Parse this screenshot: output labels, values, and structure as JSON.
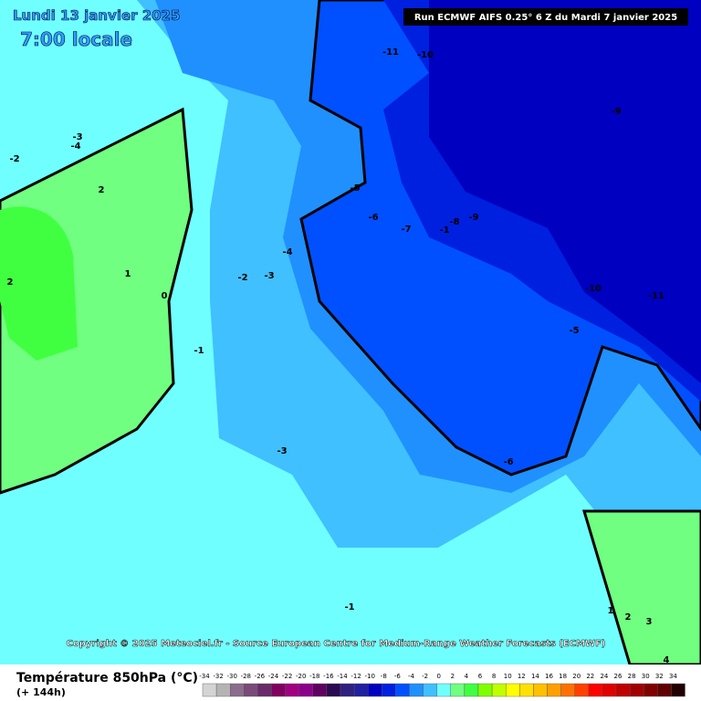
{
  "header": {
    "date": "Lundi 13 janvier 2025",
    "time": "7:00 locale",
    "run": "Run ECMWF AIFS 0.25° 6 Z du Mardi 7 janvier 2025"
  },
  "copyright": "Copyright © 2025 Meteociel.fr - Source European Centre for Medium-Range Weather Forecasts (ECMWF)",
  "contour_labels": [
    "-11",
    "-10",
    "-9",
    "-3",
    "-4",
    "-2",
    "2",
    "2",
    "1",
    "0",
    "-1",
    "-2",
    "-3",
    "-4",
    "-5",
    "-6",
    "-7",
    "-8",
    "-9",
    "-1",
    "-10",
    "-11",
    "-5",
    "-6",
    "-3",
    "-1",
    "1",
    "2",
    "3",
    "4"
  ],
  "legend": {
    "title": "Température 850hPa (°C)",
    "subtitle": "(+ 144h)",
    "ticks": [
      -34,
      -32,
      -30,
      -28,
      -26,
      -24,
      -22,
      -20,
      -18,
      -16,
      -14,
      -12,
      -10,
      -8,
      -6,
      -4,
      -2,
      0,
      2,
      4,
      6,
      8,
      10,
      12,
      14,
      16,
      18,
      20,
      22,
      24,
      26,
      28,
      30,
      32,
      34
    ],
    "colors": [
      "#d4d4d4",
      "#b4b4b4",
      "#8c6c8c",
      "#7a4a7a",
      "#6a2a6a",
      "#800060",
      "#a00080",
      "#8a008a",
      "#600060",
      "#2a0a50",
      "#302080",
      "#2020a0",
      "#0000c0",
      "#0020e0",
      "#0050ff",
      "#2090ff",
      "#40c0ff",
      "#70ffff",
      "#70ff80",
      "#40ff40",
      "#80ff00",
      "#c0ff00",
      "#ffff00",
      "#ffe000",
      "#ffc000",
      "#ffa000",
      "#ff7000",
      "#ff4000",
      "#ff0000",
      "#e00000",
      "#c00000",
      "#a00000",
      "#800000",
      "#600000",
      "#200000"
    ]
  }
}
